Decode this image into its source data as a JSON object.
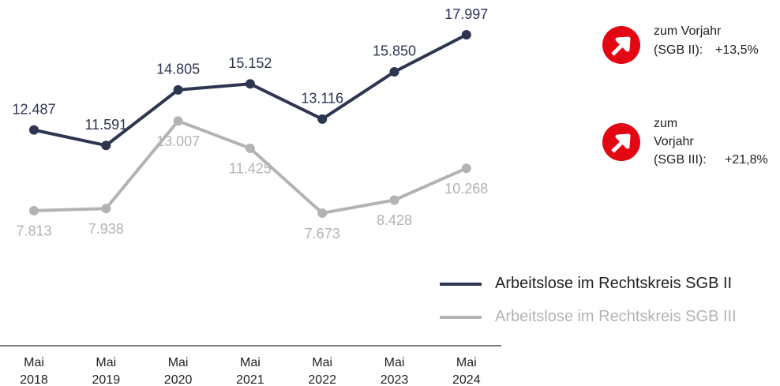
{
  "chart_data": {
    "type": "line",
    "categories": [
      "Mai 2018",
      "Mai 2019",
      "Mai 2020",
      "Mai 2021",
      "Mai 2022",
      "Mai 2023",
      "Mai 2024"
    ],
    "series": [
      {
        "name": "Arbeitslose im Rechtskreis SGB II",
        "color": "#2d3550",
        "values": [
          12487,
          11591,
          14805,
          15152,
          13116,
          15850,
          17997
        ],
        "value_labels": [
          "12.487",
          "11.591",
          "14.805",
          "15.152",
          "13.116",
          "15.850",
          "17.997"
        ]
      },
      {
        "name": "Arbeitslose im Rechtskreis SGB III",
        "color": "#b3b3b3",
        "values": [
          7813,
          7938,
          13007,
          11425,
          7673,
          8428,
          10268
        ],
        "value_labels": [
          "7.813",
          "7.938",
          "13.007",
          "11.425",
          "7.673",
          "8.428",
          "10.268"
        ]
      }
    ],
    "annotations": [
      {
        "text": "zum Vorjahr",
        "label": "(SGB II):",
        "value": "+13,5%"
      },
      {
        "text": "zum Vorjahr",
        "label": "(SGB III):",
        "value": "+21,8%"
      }
    ]
  }
}
